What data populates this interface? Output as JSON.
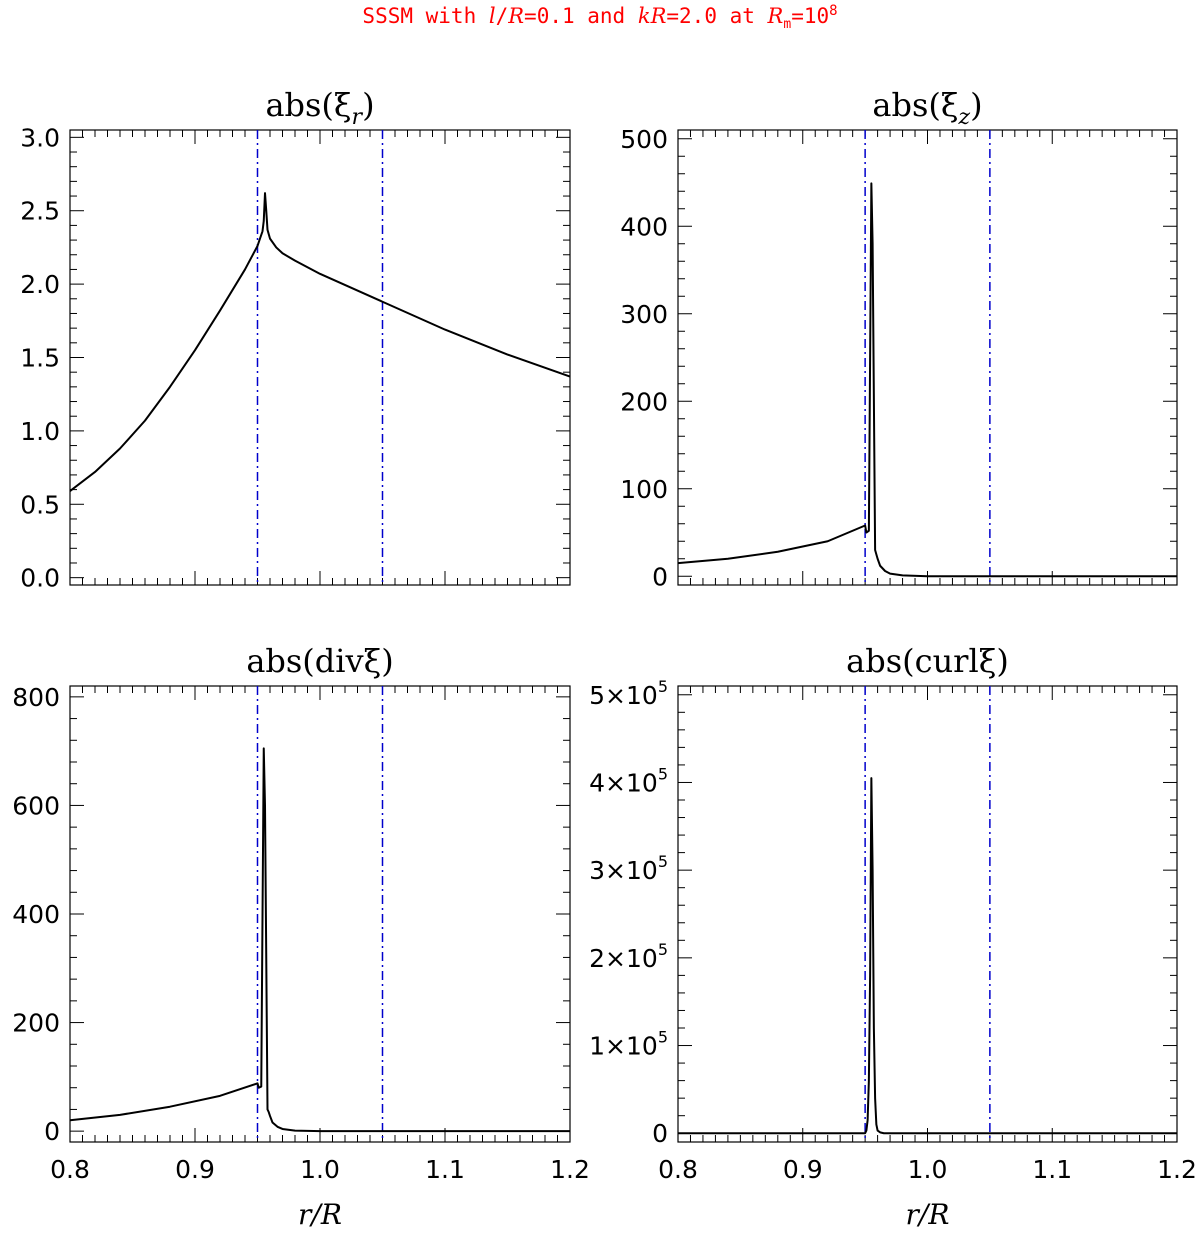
{
  "suptitle": {
    "prefix": "SSSM with ",
    "l": "l",
    "slash": "/",
    "R1": "R",
    "eq1": "=0.1 and ",
    "k": "kR",
    "eq2": "=2.0 at ",
    "Rm": "R",
    "Rm_sub": "m",
    "eq3": "=10",
    "exp": "8",
    "color": "#ff0000"
  },
  "colors": {
    "curve": "#000000",
    "marker_line": "#0000cc",
    "axes": "#000000"
  },
  "chart_data": [
    {
      "type": "line",
      "title": "abs(ξr)",
      "title_main": "abs(ξ",
      "title_sub": "r",
      "title_end": ")",
      "xlim": [
        0.8,
        1.2
      ],
      "ylim": [
        -0.05,
        3.05
      ],
      "yticks": [
        0.0,
        0.5,
        1.0,
        1.5,
        2.0,
        2.5,
        3.0
      ],
      "yticklabels": [
        "0.0",
        "0.5",
        "1.0",
        "1.5",
        "2.0",
        "2.5",
        "3.0"
      ],
      "xticks": [
        0.8,
        0.9,
        1.0,
        1.1,
        1.2
      ],
      "xticklabels": [],
      "xlabel": "",
      "vlines": [
        0.95,
        1.05
      ],
      "series": [
        {
          "x": [
            0.8,
            0.82,
            0.84,
            0.86,
            0.88,
            0.9,
            0.92,
            0.94,
            0.95,
            0.952,
            0.954,
            0.955,
            0.956,
            0.957,
            0.958,
            0.96,
            0.965,
            0.97,
            0.98,
            1.0,
            1.05,
            1.1,
            1.15,
            1.2
          ],
          "y": [
            0.59,
            0.72,
            0.88,
            1.07,
            1.3,
            1.55,
            1.82,
            2.1,
            2.26,
            2.31,
            2.36,
            2.43,
            2.62,
            2.5,
            2.37,
            2.31,
            2.25,
            2.21,
            2.16,
            2.07,
            1.88,
            1.69,
            1.52,
            1.37
          ]
        }
      ]
    },
    {
      "type": "line",
      "title": "abs(ξz)",
      "title_main": "abs(ξ",
      "title_sub": "z",
      "title_end": ")",
      "xlim": [
        0.8,
        1.2
      ],
      "ylim": [
        -10,
        510
      ],
      "yticks": [
        0,
        100,
        200,
        300,
        400,
        500
      ],
      "yticklabels": [
        "0",
        "100",
        "200",
        "300",
        "400",
        "500"
      ],
      "xticks": [
        0.8,
        0.9,
        1.0,
        1.1,
        1.2
      ],
      "xticklabels": [],
      "xlabel": "",
      "vlines": [
        0.95,
        1.05
      ],
      "series": [
        {
          "x": [
            0.8,
            0.84,
            0.88,
            0.92,
            0.95,
            0.951,
            0.953,
            0.955,
            0.956,
            0.958,
            0.959,
            0.96,
            0.962,
            0.966,
            0.97,
            0.98,
            1.0,
            1.05,
            1.1,
            1.2
          ],
          "y": [
            15,
            20,
            28,
            40,
            58,
            50,
            52,
            449,
            380,
            30,
            25,
            20,
            12,
            6,
            3,
            1,
            0,
            0,
            0,
            0
          ]
        }
      ]
    },
    {
      "type": "line",
      "title": "abs(divξ)",
      "title_main": "abs(divξ",
      "title_sub": "",
      "title_end": ")",
      "xlim": [
        0.8,
        1.2
      ],
      "ylim": [
        -20,
        820
      ],
      "yticks": [
        0,
        200,
        400,
        600,
        800
      ],
      "yticklabels": [
        "0",
        "200",
        "400",
        "600",
        "800"
      ],
      "xticks": [
        0.8,
        0.9,
        1.0,
        1.1,
        1.2
      ],
      "xticklabels": [
        "0.8",
        "0.9",
        "1.0",
        "1.1",
        "1.2"
      ],
      "xlabel": "r/R",
      "vlines": [
        0.95,
        1.05
      ],
      "series": [
        {
          "x": [
            0.8,
            0.84,
            0.88,
            0.92,
            0.95,
            0.951,
            0.953,
            0.955,
            0.956,
            0.958,
            0.959,
            0.96,
            0.962,
            0.966,
            0.97,
            0.98,
            1.0,
            1.05,
            1.1,
            1.2
          ],
          "y": [
            20,
            30,
            45,
            65,
            88,
            80,
            82,
            705,
            600,
            40,
            35,
            28,
            16,
            8,
            4,
            1,
            0,
            0,
            0,
            0
          ]
        }
      ]
    },
    {
      "type": "line",
      "title": "abs(curlξ)",
      "title_main": "abs(curlξ",
      "title_sub": "",
      "title_end": ")",
      "xlim": [
        0.8,
        1.2
      ],
      "ylim": [
        -10000,
        510000
      ],
      "yticks": [
        0,
        100000,
        200000,
        300000,
        400000,
        500000
      ],
      "yticklabels": [
        "0",
        "1×10⁵",
        "2×10⁵",
        "3×10⁵",
        "4×10⁵",
        "5×10⁵"
      ],
      "xticks": [
        0.8,
        0.9,
        1.0,
        1.1,
        1.2
      ],
      "xticklabels": [
        "0.8",
        "0.9",
        "1.0",
        "1.1",
        "1.2"
      ],
      "xlabel": "r/R",
      "vlines": [
        0.95,
        1.05
      ],
      "series": [
        {
          "x": [
            0.8,
            0.9,
            0.95,
            0.951,
            0.952,
            0.953,
            0.954,
            0.955,
            0.956,
            0.957,
            0.958,
            0.959,
            0.96,
            0.962,
            0.965,
            0.97,
            1.0,
            1.2
          ],
          "y": [
            0,
            0,
            0,
            3000,
            15000,
            60000,
            180000,
            405000,
            300000,
            120000,
            40000,
            10000,
            3000,
            1000,
            0,
            0,
            0,
            0
          ]
        }
      ]
    }
  ]
}
